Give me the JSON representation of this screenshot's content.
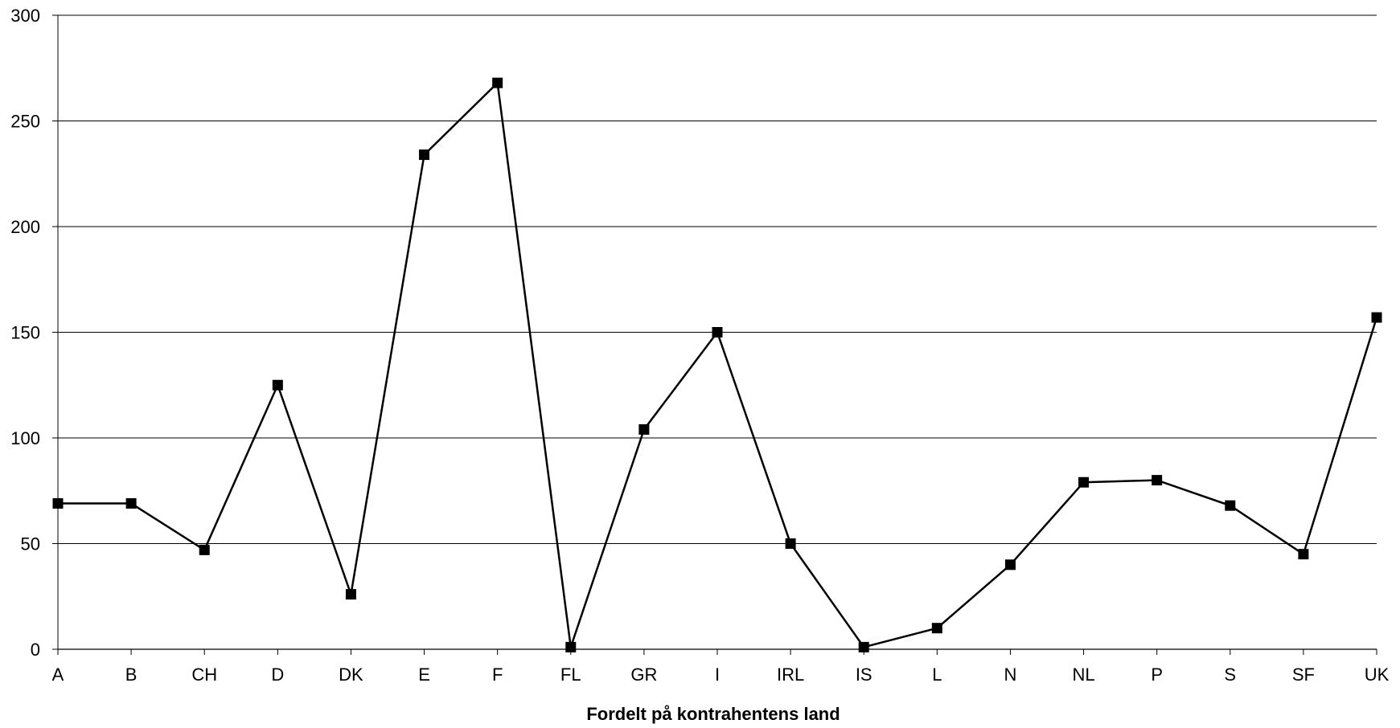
{
  "chart_data": {
    "type": "line",
    "title": "",
    "xlabel": "Fordelt på kontrahentens land",
    "ylabel": "",
    "categories": [
      "A",
      "B",
      "CH",
      "D",
      "DK",
      "E",
      "F",
      "FL",
      "GR",
      "I",
      "IRL",
      "IS",
      "L",
      "N",
      "NL",
      "P",
      "S",
      "SF",
      "UK"
    ],
    "series": [
      {
        "values": [
          69,
          69,
          47,
          125,
          26,
          234,
          268,
          1,
          104,
          150,
          50,
          1,
          10,
          40,
          79,
          80,
          68,
          45,
          157
        ]
      }
    ],
    "ylim": [
      0,
      300
    ],
    "yticks": [
      "0",
      "50",
      "100",
      "150",
      "200",
      "250",
      "300"
    ],
    "grid": true,
    "legend": "none",
    "colors": {
      "line": "#000000",
      "marker": "#000000",
      "grid": "#000000"
    }
  }
}
